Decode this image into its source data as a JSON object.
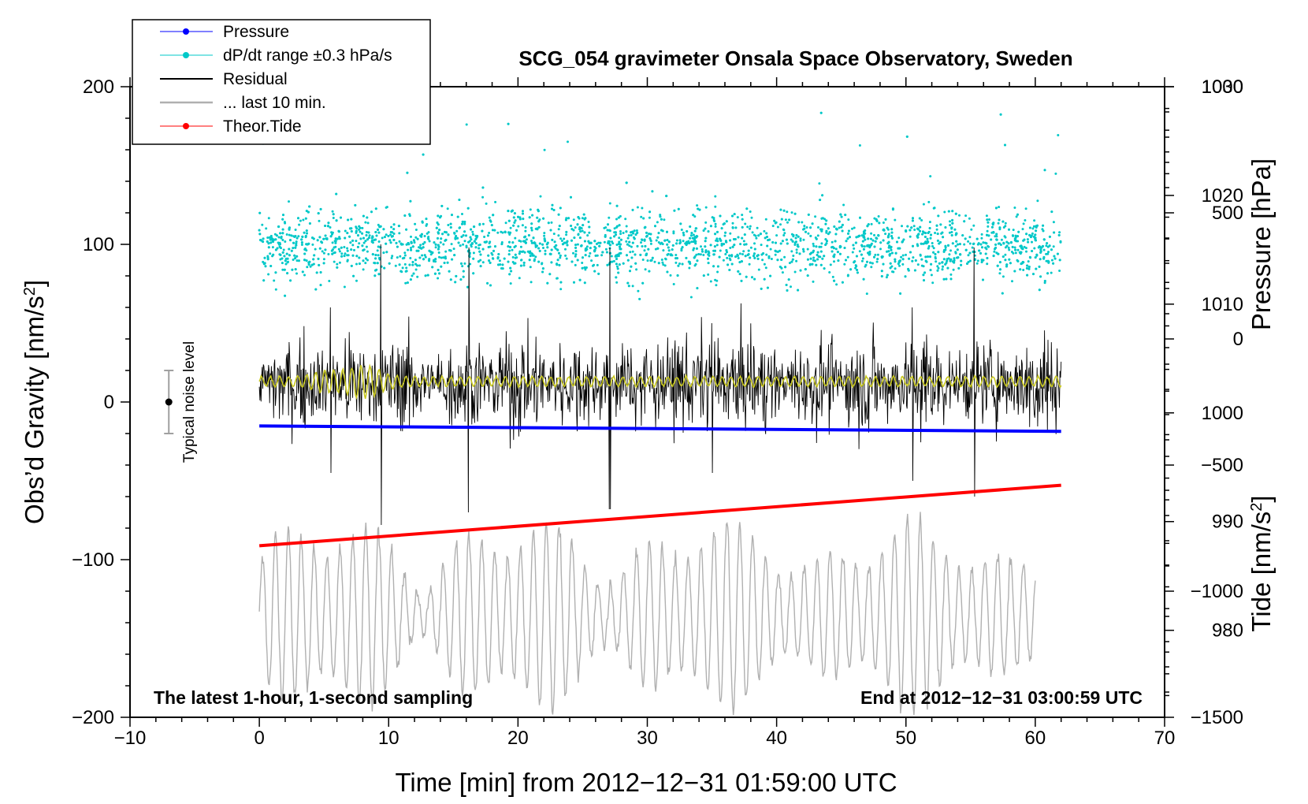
{
  "chart_data": {
    "type": "line",
    "title": "SCG_054 gravimeter Onsala Space Observatory, Sweden",
    "xlabel": "Time [min] from 2012−12−31 01:59:00 UTC",
    "ylabel_left": "Obs’d Gravity [nm/s",
    "ylabel_left_sup": "2",
    "ylabel_left_end": "]",
    "ylabel_right_top": "Pressure [hPa]",
    "ylabel_right_bottom": "Tide [nm/s",
    "ylabel_right_bottom_sup": "2",
    "ylabel_right_bottom_end": "]",
    "xlim": [
      -10,
      70
    ],
    "ylim_left": [
      -200,
      200
    ],
    "pressure_range": [
      972,
      1030
    ],
    "tide_range": [
      -1500,
      1000
    ],
    "x_ticks": [
      "−10",
      "0",
      "10",
      "20",
      "30",
      "40",
      "50",
      "60",
      "70"
    ],
    "y_left_ticks": [
      "200",
      "100",
      "0",
      "−100",
      "−200"
    ],
    "pressure_ticks": [
      "1030",
      "1020",
      "1010",
      "1000",
      "990",
      "980"
    ],
    "tide_ticks": [
      "1000",
      "500",
      "0",
      "−500",
      "−1000",
      "−1500"
    ],
    "legend": {
      "pressure": "Pressure",
      "dpdt": "dP/dt range ±0.3 hPa/s",
      "residual": "Residual",
      "last10": "... last 10 min.",
      "tide": "Theor.Tide"
    },
    "annotation_left": "The latest 1-hour, 1-second sampling",
    "annotation_right": "End at 2012−12−31 03:00:59 UTC",
    "noise_label": "Typical noise level",
    "noise_bar": {
      "x": -7,
      "center": 0,
      "half_range": 20
    },
    "series": [
      {
        "name": "Pressure",
        "color": "#0000ff",
        "axis": "pressure",
        "x": [
          0,
          62
        ],
        "y": [
          998.8,
          998.3
        ]
      },
      {
        "name": "Theor.Tide",
        "color": "#ff0000",
        "axis": "tide",
        "x": [
          0,
          62
        ],
        "y": [
          -820,
          -580
        ]
      },
      {
        "name": "Residual",
        "color": "#000000",
        "axis": "left",
        "x_range": [
          0,
          62
        ],
        "baseline": 12,
        "envelope": 40,
        "spike_max": 100,
        "spike_min": -78
      },
      {
        "name": "Filtered residual",
        "color": "#c8c820",
        "axis": "left",
        "x_range": [
          0,
          62
        ],
        "baseline": 13,
        "amplitude": 3
      },
      {
        "name": "... last 10 min.",
        "color": "#b0b0b0",
        "axis": "left",
        "x_range": [
          0,
          60
        ],
        "center": -135,
        "amplitude": 50,
        "extremes": [
          -60,
          -200
        ]
      },
      {
        "name": "dP/dt range ±0.3 hPa/s",
        "color": "#00c8c8",
        "axis": "left",
        "x_range": [
          0,
          62
        ],
        "center": 100,
        "spread": 25,
        "max": 186,
        "min": 45
      }
    ]
  }
}
